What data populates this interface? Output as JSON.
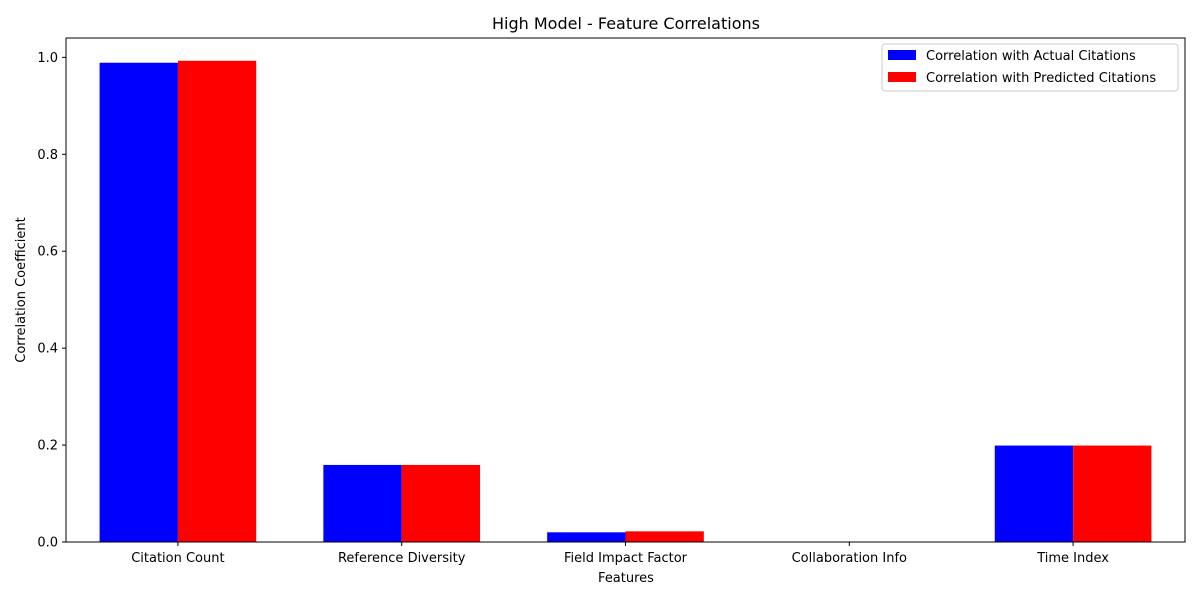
{
  "chart_data": {
    "type": "bar",
    "title": "High Model - Feature Correlations",
    "xlabel": "Features",
    "ylabel": "Correlation Coefficient",
    "categories": [
      "Citation Count",
      "Reference Diversity",
      "Field Impact Factor",
      "Collaboration Info",
      "Time Index"
    ],
    "series": [
      {
        "name": "Correlation with Actual Citations",
        "color": "#0000ff",
        "values": [
          0.989,
          0.159,
          0.02,
          0.0,
          0.199
        ]
      },
      {
        "name": "Correlation with Predicted Citations",
        "color": "#ff0000",
        "values": [
          0.993,
          0.159,
          0.022,
          0.0,
          0.199
        ]
      }
    ],
    "ylim": [
      0,
      1.04
    ],
    "yticks": [
      0.0,
      0.2,
      0.4,
      0.6,
      0.8,
      1.0
    ],
    "ytick_labels": [
      "0.0",
      "0.2",
      "0.4",
      "0.6",
      "0.8",
      "1.0"
    ],
    "grid": false,
    "legend_position": "top-right"
  }
}
